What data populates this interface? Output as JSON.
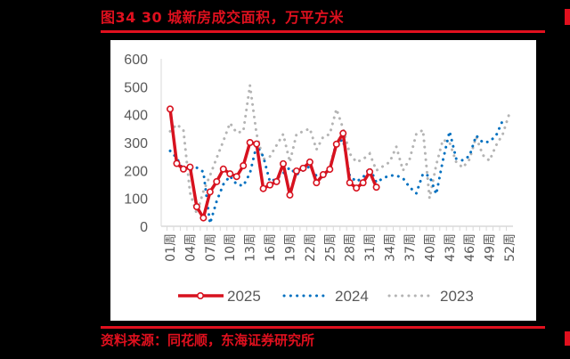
{
  "figure": {
    "title": "图34  30 城新房成交面积，万平方米",
    "source": "资料来源：同花顺，东海证券研究所"
  },
  "colors": {
    "accent": "#e0101e",
    "series_2025": "#d7121f",
    "series_2024": "#0070c0",
    "series_2023": "#b4b4b4",
    "axis": "#d9d9d9",
    "tick_text": "#595959"
  },
  "chart_data": {
    "type": "line",
    "title": "30 城新房成交面积，万平方米",
    "xlabel": "",
    "ylabel": "万平方米",
    "ylim": [
      0,
      600
    ],
    "yticks": [
      0,
      100,
      200,
      300,
      400,
      500,
      600
    ],
    "ytick_labels": [
      "0",
      "100",
      "200",
      "300",
      "400",
      "500",
      "600"
    ],
    "x": [
      1,
      2,
      3,
      4,
      5,
      6,
      7,
      8,
      9,
      10,
      11,
      12,
      13,
      14,
      15,
      16,
      17,
      18,
      19,
      20,
      21,
      22,
      23,
      24,
      25,
      26,
      27,
      28,
      29,
      30,
      31,
      32,
      33,
      34,
      35,
      36,
      37,
      38,
      39,
      40,
      41,
      42,
      43,
      44,
      45,
      46,
      47,
      48,
      49,
      50,
      51,
      52
    ],
    "xtick_labels": [
      "01周",
      "04周",
      "07周",
      "10周",
      "13周",
      "16周",
      "19周",
      "22周",
      "25周",
      "28周",
      "31周",
      "34周",
      "37周",
      "40周",
      "43周",
      "46周",
      "49周",
      "52周"
    ],
    "grid": false,
    "legend_position": "bottom",
    "series": [
      {
        "name": "2025",
        "style": "solid-with-hollow-circle-markers",
        "values": [
          420,
          225,
          205,
          212,
          70,
          30,
          123,
          160,
          205,
          188,
          178,
          217,
          300,
          295,
          135,
          148,
          160,
          224,
          112,
          198,
          208,
          230,
          156,
          185,
          204,
          294,
          333,
          156,
          137,
          156,
          195,
          140
        ]
      },
      {
        "name": "2024",
        "style": "dotted",
        "values": [
          270,
          245,
          200,
          200,
          210,
          195,
          10,
          90,
          150,
          180,
          150,
          145,
          190,
          290,
          250,
          160,
          170,
          190,
          210,
          185,
          200,
          215,
          180,
          175,
          210,
          300,
          310,
          180,
          160,
          175,
          210,
          157,
          172,
          182,
          182,
          172,
          140,
          118,
          188,
          180,
          115,
          236,
          340,
          242,
          236,
          252,
          325,
          300,
          303,
          325,
          380,
          null
        ]
      },
      {
        "name": "2023",
        "style": "dotted",
        "values": [
          340,
          365,
          345,
          120,
          45,
          125,
          182,
          245,
          305,
          370,
          335,
          340,
          505,
          330,
          240,
          250,
          290,
          330,
          230,
          330,
          340,
          350,
          275,
          320,
          330,
          420,
          350,
          260,
          230,
          240,
          260,
          200,
          215,
          230,
          285,
          200,
          240,
          330,
          345,
          100,
          220,
          310,
          300,
          230,
          210,
          240,
          320,
          255,
          235,
          290,
          330,
          405
        ]
      }
    ]
  }
}
